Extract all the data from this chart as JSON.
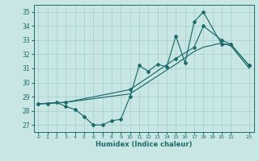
{
  "xlabel": "Humidex (Indice chaleur)",
  "xlim": [
    -0.5,
    23.5
  ],
  "ylim": [
    26.5,
    35.5
  ],
  "yticks": [
    27,
    28,
    29,
    30,
    31,
    32,
    33,
    34,
    35
  ],
  "xticks": [
    0,
    1,
    2,
    3,
    4,
    5,
    6,
    7,
    8,
    9,
    10,
    11,
    12,
    13,
    14,
    15,
    16,
    17,
    18,
    19,
    20,
    21,
    23
  ],
  "bg_color": "#c8e6e4",
  "grid_color": "#a3cece",
  "line_color": "#1e6b6b",
  "jagged_x": [
    0,
    1,
    2,
    3,
    4,
    5,
    6,
    7,
    8,
    9,
    10,
    11,
    12,
    13,
    14,
    15,
    16,
    17,
    18,
    20,
    21,
    23
  ],
  "jagged_y": [
    28.5,
    28.5,
    28.6,
    28.3,
    28.1,
    27.6,
    27.0,
    27.0,
    27.3,
    27.4,
    29.0,
    31.2,
    30.8,
    31.3,
    31.1,
    33.3,
    31.4,
    34.3,
    35.0,
    32.7,
    32.7,
    31.2
  ],
  "trend1_x": [
    0,
    3,
    10,
    15,
    17,
    18,
    20,
    21,
    23
  ],
  "trend1_y": [
    28.5,
    28.6,
    29.5,
    31.7,
    32.5,
    34.0,
    33.0,
    32.7,
    31.2
  ],
  "trend2_x": [
    0,
    3,
    10,
    15,
    17,
    18,
    20,
    21,
    23
  ],
  "trend2_y": [
    28.5,
    28.6,
    29.2,
    31.3,
    32.2,
    32.5,
    32.8,
    32.6,
    31.0
  ]
}
